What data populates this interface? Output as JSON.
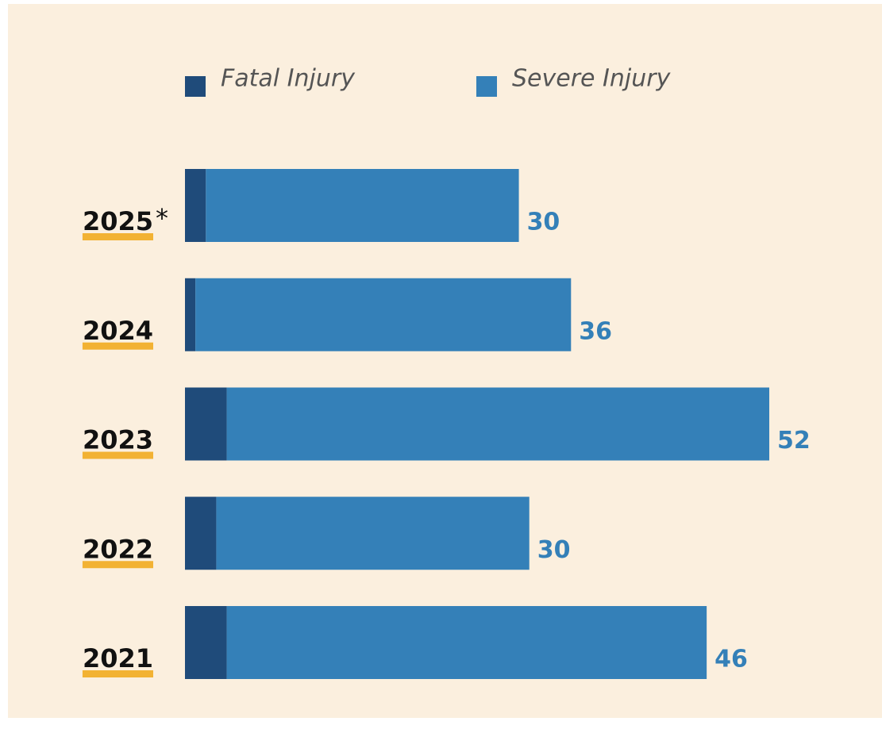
{
  "chart_data": {
    "type": "stacked-bar-horizontal",
    "categories": [
      "2025",
      "2024",
      "2023",
      "2022",
      "2021"
    ],
    "annotation": "*",
    "series": [
      {
        "name": "Fatal Injury",
        "color": "#1f4b7a",
        "values": [
          2,
          1,
          4,
          3,
          4
        ]
      },
      {
        "name": "Severe Injury",
        "color": "#3480b8",
        "values": [
          30,
          36,
          52,
          30,
          46
        ]
      }
    ]
  }
}
